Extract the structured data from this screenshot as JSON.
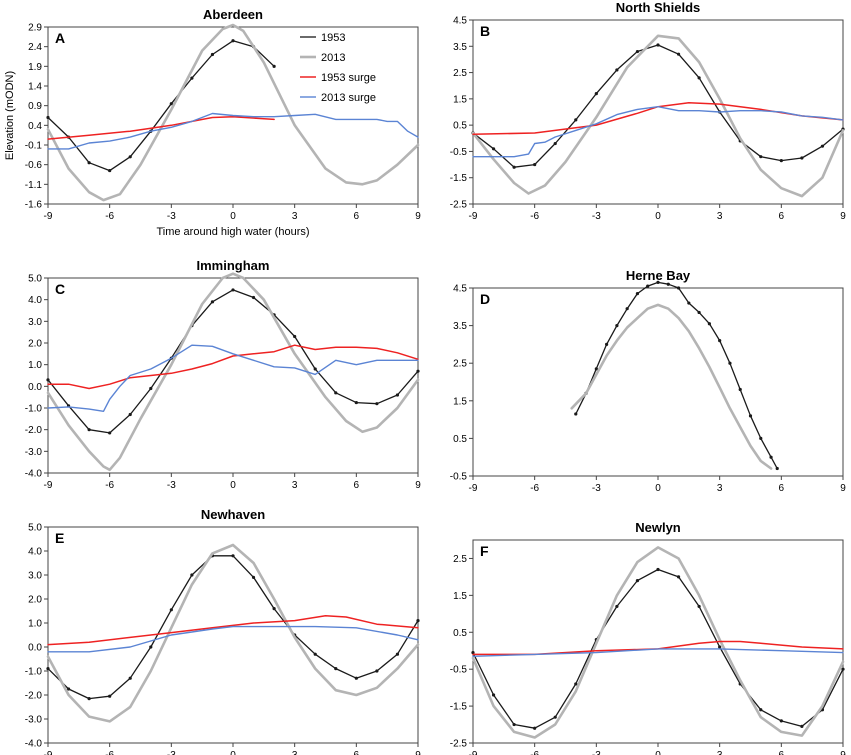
{
  "figure": {
    "xlabel_text": "Time around high water (hours)",
    "ylabel_text": "Elevation (mODN)"
  },
  "colors": {
    "1953": "#1a1a1a",
    "2013": "#b4b4b4",
    "1953 surge": "#ee2222",
    "2013 surge": "#5b84d4"
  },
  "chart_data": [
    {
      "type": "line",
      "panel": "A",
      "title": "Aberdeen",
      "xlabel": "Time around high water (hours)",
      "ylabel": "Elevation (mODN)",
      "xlim": [
        -9,
        9
      ],
      "ylim": [
        -1.6,
        2.9
      ],
      "xticks": [
        "-9",
        "-6",
        "-3",
        "0",
        "3",
        "6",
        "9"
      ],
      "yticks": [
        "-1.6",
        "-1.1",
        "-0.6",
        "-0.1",
        "0.4",
        "0.9",
        "1.4",
        "1.9",
        "2.4",
        "2.9"
      ],
      "legend": [
        "1953",
        "2013",
        "1953 surge",
        "2013 surge"
      ],
      "series": [
        {
          "name": "1953",
          "markers": true,
          "x": [
            -9,
            -8,
            -7,
            -6,
            -5,
            -4,
            -3,
            -2,
            -1,
            0,
            1,
            2
          ],
          "y": [
            0.6,
            0.1,
            -0.55,
            -0.75,
            -0.4,
            0.25,
            0.95,
            1.6,
            2.2,
            2.55,
            2.4,
            1.9
          ]
        },
        {
          "name": "2013",
          "x": [
            -9,
            -8,
            -7,
            -6.3,
            -5.5,
            -4.5,
            -3,
            -1.5,
            -0.5,
            0,
            0.5,
            1.5,
            3,
            4.5,
            5.5,
            6.3,
            7,
            8,
            9
          ],
          "y": [
            0.3,
            -0.7,
            -1.3,
            -1.5,
            -1.35,
            -0.6,
            0.8,
            2.3,
            2.85,
            2.95,
            2.8,
            2.0,
            0.4,
            -0.7,
            -1.05,
            -1.1,
            -1.0,
            -0.6,
            -0.1
          ]
        },
        {
          "name": "1953 surge",
          "x": [
            -9,
            -7,
            -5,
            -3,
            -1,
            0,
            2
          ],
          "y": [
            0.05,
            0.15,
            0.25,
            0.4,
            0.6,
            0.62,
            0.55
          ]
        },
        {
          "name": "2013 surge",
          "x": [
            -9,
            -8,
            -7,
            -6,
            -5,
            -4,
            -3,
            -2,
            -1,
            0,
            1,
            2,
            3,
            4,
            5,
            6,
            7,
            7.5,
            8,
            8.5,
            9
          ],
          "y": [
            -0.2,
            -0.2,
            -0.05,
            0.0,
            0.1,
            0.25,
            0.35,
            0.5,
            0.7,
            0.65,
            0.62,
            0.62,
            0.65,
            0.68,
            0.55,
            0.55,
            0.55,
            0.5,
            0.5,
            0.25,
            0.1
          ]
        }
      ]
    },
    {
      "type": "line",
      "panel": "B",
      "title": "North Shields",
      "xlim": [
        -9,
        9
      ],
      "ylim": [
        -2.5,
        4.5
      ],
      "xticks": [
        "-9",
        "-6",
        "-3",
        "0",
        "3",
        "6",
        "9"
      ],
      "yticks": [
        "-2.5",
        "-1.5",
        "-0.5",
        "0.5",
        "1.5",
        "2.5",
        "3.5",
        "4.5"
      ],
      "series": [
        {
          "name": "1953",
          "markers": true,
          "x": [
            -9,
            -8,
            -7,
            -6,
            -5,
            -4,
            -3,
            -2,
            -1,
            0,
            1,
            2,
            3,
            4,
            5,
            6,
            7,
            8,
            9
          ],
          "y": [
            0.2,
            -0.4,
            -1.1,
            -1.0,
            -0.2,
            0.7,
            1.7,
            2.6,
            3.3,
            3.55,
            3.2,
            2.3,
            1.0,
            -0.1,
            -0.7,
            -0.85,
            -0.75,
            -0.3,
            0.35
          ]
        },
        {
          "name": "2013",
          "x": [
            -9,
            -8,
            -7,
            -6.3,
            -5.5,
            -4.5,
            -3,
            -1.5,
            0,
            1,
            2,
            3,
            4,
            5,
            6,
            7,
            8,
            9
          ],
          "y": [
            0.2,
            -0.8,
            -1.7,
            -2.1,
            -1.8,
            -0.9,
            0.8,
            2.7,
            3.9,
            3.8,
            2.9,
            1.5,
            0.0,
            -1.2,
            -1.9,
            -2.2,
            -1.5,
            0.3
          ]
        },
        {
          "name": "1953 surge",
          "x": [
            -9,
            -6,
            -3,
            -1,
            0,
            1.5,
            3,
            5,
            7,
            9
          ],
          "y": [
            0.15,
            0.2,
            0.5,
            0.95,
            1.2,
            1.35,
            1.3,
            1.1,
            0.85,
            0.7
          ]
        },
        {
          "name": "2013 surge",
          "x": [
            -9,
            -7,
            -6.3,
            -6,
            -5.5,
            -5,
            -4,
            -3,
            -2,
            -1,
            0,
            1,
            2,
            3,
            4,
            5,
            6,
            7,
            8,
            9
          ],
          "y": [
            -0.7,
            -0.7,
            -0.6,
            -0.2,
            -0.15,
            0.05,
            0.3,
            0.55,
            0.9,
            1.1,
            1.2,
            1.05,
            1.05,
            1.0,
            1.05,
            1.05,
            1.0,
            0.85,
            0.8,
            0.7
          ]
        }
      ]
    },
    {
      "type": "line",
      "panel": "C",
      "title": "Immingham",
      "xlim": [
        -9,
        9
      ],
      "ylim": [
        -4.0,
        5.0
      ],
      "xticks": [
        "-9",
        "-6",
        "-3",
        "0",
        "3",
        "6",
        "9"
      ],
      "yticks": [
        "-4.0",
        "-3.0",
        "-2.0",
        "-1.0",
        "0.0",
        "1.0",
        "2.0",
        "3.0",
        "4.0",
        "5.0"
      ],
      "series": [
        {
          "name": "1953",
          "markers": true,
          "x": [
            -9,
            -8,
            -7,
            -6,
            -5,
            -4,
            -3,
            -2,
            -1,
            0,
            1,
            2,
            3,
            4,
            5,
            6,
            7,
            8,
            9
          ],
          "y": [
            0.3,
            -0.9,
            -2.0,
            -2.15,
            -1.3,
            -0.1,
            1.3,
            2.8,
            3.9,
            4.45,
            4.1,
            3.3,
            2.3,
            0.8,
            -0.3,
            -0.75,
            -0.8,
            -0.4,
            0.7
          ]
        },
        {
          "name": "2013",
          "x": [
            -9,
            -8,
            -7,
            -6.3,
            -6,
            -5.5,
            -4.5,
            -3,
            -1.5,
            -0.5,
            0,
            0.5,
            1.5,
            3,
            4.5,
            5.5,
            6.3,
            7,
            8,
            9
          ],
          "y": [
            -0.3,
            -1.8,
            -3.0,
            -3.7,
            -3.85,
            -3.3,
            -1.5,
            1.0,
            3.8,
            5.0,
            5.2,
            5.0,
            4.0,
            1.5,
            -0.5,
            -1.6,
            -2.1,
            -1.9,
            -1.0,
            0.3
          ]
        },
        {
          "name": "1953 surge",
          "x": [
            -9,
            -8,
            -7,
            -6,
            -5,
            -4,
            -3,
            -2,
            -1,
            0,
            1,
            2,
            3,
            4,
            5,
            6,
            7,
            8,
            9
          ],
          "y": [
            0.1,
            0.1,
            -0.1,
            0.1,
            0.4,
            0.5,
            0.6,
            0.8,
            1.05,
            1.4,
            1.5,
            1.6,
            1.9,
            1.7,
            1.8,
            1.8,
            1.75,
            1.55,
            1.25
          ]
        },
        {
          "name": "2013 surge",
          "x": [
            -9,
            -8,
            -7,
            -6.3,
            -6,
            -5.5,
            -5,
            -4,
            -3,
            -2,
            -1,
            0,
            1,
            2,
            3,
            4,
            5,
            6,
            7,
            8,
            9
          ],
          "y": [
            -1.0,
            -0.95,
            -1.05,
            -1.15,
            -0.6,
            0.0,
            0.5,
            0.8,
            1.3,
            1.9,
            1.85,
            1.5,
            1.2,
            0.9,
            0.85,
            0.55,
            1.2,
            1.0,
            1.2,
            1.2,
            1.2
          ]
        }
      ]
    },
    {
      "type": "line",
      "panel": "D",
      "title": "Herne Bay",
      "xlim": [
        -9,
        9
      ],
      "ylim": [
        -0.5,
        4.5
      ],
      "xticks": [
        "-9",
        "-6",
        "-3",
        "0",
        "3",
        "6",
        "9"
      ],
      "yticks": [
        "-0.5",
        "0.5",
        "1.5",
        "2.5",
        "3.5",
        "4.5"
      ],
      "series": [
        {
          "name": "1953",
          "markers": true,
          "x": [
            -4,
            -3.5,
            -3,
            -2.5,
            -2,
            -1.5,
            -1,
            -0.5,
            0,
            0.5,
            1,
            1.5,
            2,
            2.5,
            3,
            3.5,
            4,
            4.5,
            5,
            5.5,
            5.8
          ],
          "y": [
            1.15,
            1.7,
            2.35,
            3.0,
            3.5,
            3.95,
            4.35,
            4.55,
            4.65,
            4.6,
            4.5,
            4.1,
            3.85,
            3.55,
            3.1,
            2.5,
            1.8,
            1.1,
            0.5,
            0.0,
            -0.3
          ]
        },
        {
          "name": "2013",
          "x": [
            -4.2,
            -3.5,
            -3,
            -2.5,
            -2,
            -1.5,
            -1,
            -0.5,
            0,
            0.5,
            1,
            1.5,
            2,
            2.5,
            3,
            3.5,
            4,
            4.5,
            5,
            5.5
          ],
          "y": [
            1.3,
            1.7,
            2.2,
            2.7,
            3.1,
            3.45,
            3.7,
            3.95,
            4.05,
            3.95,
            3.7,
            3.35,
            2.9,
            2.4,
            1.85,
            1.3,
            0.8,
            0.3,
            -0.1,
            -0.3
          ]
        }
      ]
    },
    {
      "type": "line",
      "panel": "E",
      "title": "Newhaven",
      "xlim": [
        -9,
        9
      ],
      "ylim": [
        -4.0,
        5.0
      ],
      "xticks": [
        "-9",
        "-6",
        "-3",
        "0",
        "3",
        "6",
        "9"
      ],
      "yticks": [
        "-4.0",
        "-3.0",
        "-2.0",
        "-1.0",
        "0.0",
        "1.0",
        "2.0",
        "3.0",
        "4.0",
        "5.0"
      ],
      "series": [
        {
          "name": "1953",
          "markers": true,
          "x": [
            -9,
            -8,
            -7,
            -6,
            -5,
            -4,
            -3,
            -2,
            -1,
            0,
            1,
            2,
            3,
            4,
            5,
            6,
            7,
            8,
            9
          ],
          "y": [
            -0.9,
            -1.75,
            -2.15,
            -2.05,
            -1.3,
            0.0,
            1.55,
            3.0,
            3.8,
            3.8,
            2.9,
            1.6,
            0.5,
            -0.3,
            -0.9,
            -1.3,
            -1.0,
            -0.3,
            1.1
          ]
        },
        {
          "name": "2013",
          "x": [
            -9,
            -8,
            -7,
            -6,
            -5,
            -4,
            -3,
            -2,
            -1,
            0,
            1,
            2,
            3,
            4,
            5,
            6,
            7,
            8,
            9
          ],
          "y": [
            -0.4,
            -2.0,
            -2.9,
            -3.1,
            -2.5,
            -1.0,
            0.8,
            2.6,
            3.9,
            4.25,
            3.5,
            2.0,
            0.4,
            -0.9,
            -1.8,
            -2.0,
            -1.7,
            -0.9,
            0.1
          ]
        },
        {
          "name": "1953 surge",
          "x": [
            -9,
            -7,
            -5,
            -3,
            -1,
            0,
            1,
            3,
            4.5,
            5.5,
            7,
            9
          ],
          "y": [
            0.1,
            0.2,
            0.4,
            0.6,
            0.8,
            0.9,
            1.0,
            1.1,
            1.3,
            1.25,
            0.95,
            0.8
          ]
        },
        {
          "name": "2013 surge",
          "x": [
            -9,
            -7,
            -5,
            -3,
            -1,
            0,
            2,
            4,
            6,
            8,
            9
          ],
          "y": [
            -0.2,
            -0.2,
            0.0,
            0.5,
            0.75,
            0.85,
            0.85,
            0.85,
            0.8,
            0.5,
            0.3
          ]
        }
      ]
    },
    {
      "type": "line",
      "panel": "F",
      "title": "Newlyn",
      "xlim": [
        -9,
        9
      ],
      "ylim": [
        -2.5,
        3.0
      ],
      "xticks": [
        "-9",
        "-6",
        "-3",
        "0",
        "3",
        "6",
        "9"
      ],
      "yticks": [
        "-2.5",
        "-1.5",
        "-0.5",
        "0.5",
        "1.5",
        "2.5"
      ],
      "series": [
        {
          "name": "1953",
          "markers": true,
          "x": [
            -9,
            -8,
            -7,
            -6,
            -5,
            -4,
            -3,
            -2,
            -1,
            0,
            1,
            2,
            3,
            4,
            5,
            6,
            7,
            8,
            9
          ],
          "y": [
            -0.05,
            -1.2,
            -2.0,
            -2.1,
            -1.8,
            -0.9,
            0.3,
            1.2,
            1.9,
            2.2,
            2.0,
            1.2,
            0.1,
            -0.9,
            -1.6,
            -1.9,
            -2.05,
            -1.6,
            -0.5
          ]
        },
        {
          "name": "2013",
          "x": [
            -9,
            -8,
            -7,
            -6,
            -5,
            -4,
            -3,
            -2,
            -1,
            0,
            1,
            2,
            3,
            4,
            5,
            6,
            7,
            8,
            9
          ],
          "y": [
            -0.2,
            -1.5,
            -2.2,
            -2.35,
            -2.0,
            -1.1,
            0.2,
            1.5,
            2.4,
            2.8,
            2.5,
            1.5,
            0.3,
            -0.8,
            -1.8,
            -2.2,
            -2.3,
            -1.5,
            -0.3
          ]
        },
        {
          "name": "1953 surge",
          "x": [
            -9,
            -6,
            -3,
            0,
            2,
            3,
            4,
            5,
            7,
            9
          ],
          "y": [
            -0.1,
            -0.1,
            0.0,
            0.05,
            0.2,
            0.25,
            0.25,
            0.2,
            0.1,
            0.05
          ]
        },
        {
          "name": "2013 surge",
          "x": [
            -9,
            -6,
            -3,
            0,
            3,
            6,
            9
          ],
          "y": [
            -0.15,
            -0.1,
            -0.05,
            0.05,
            0.05,
            0.0,
            -0.05
          ]
        }
      ]
    }
  ]
}
